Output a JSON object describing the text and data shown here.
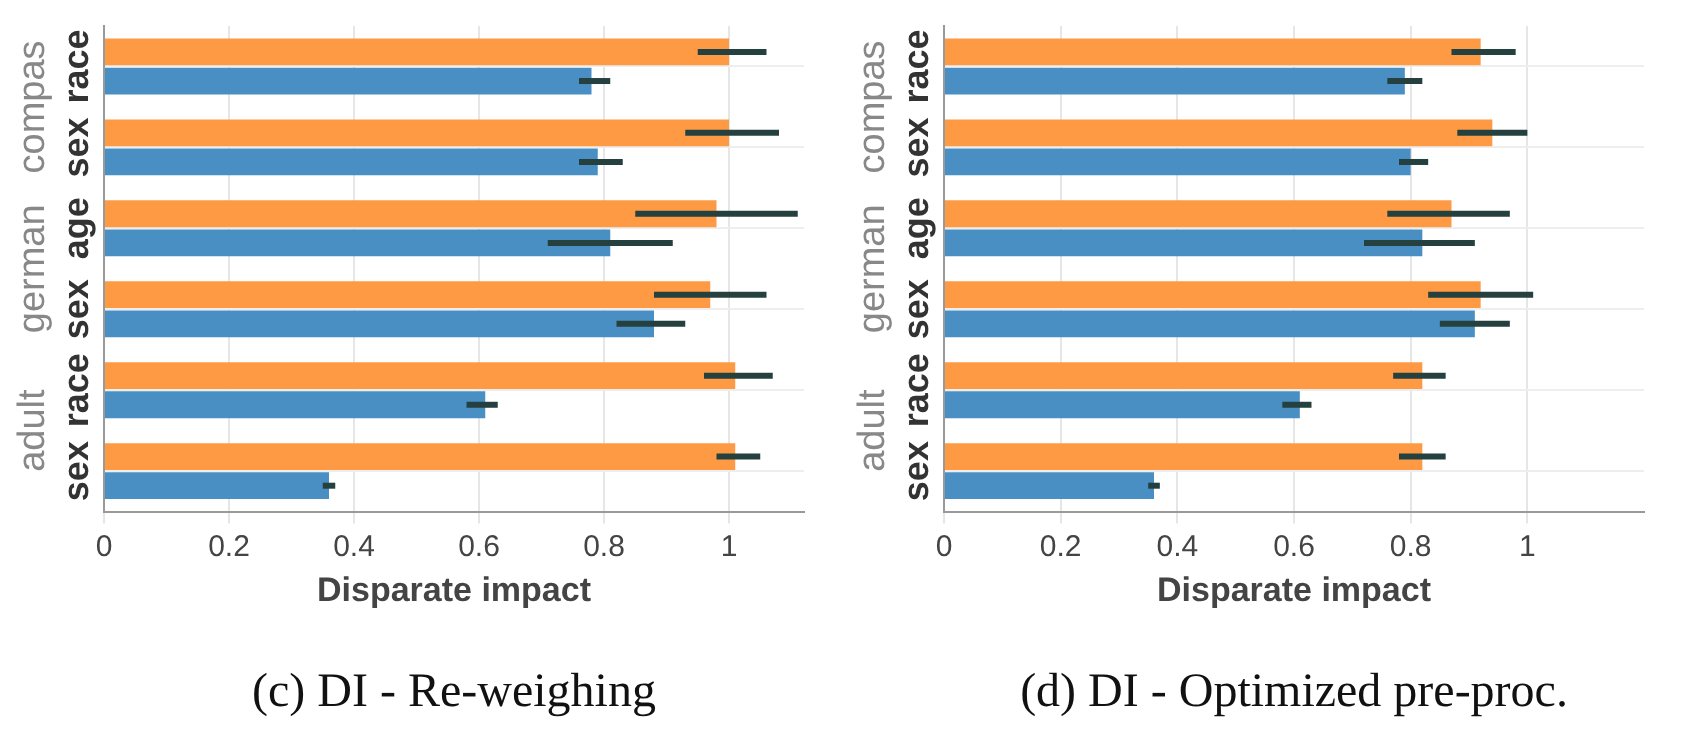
{
  "chart_data": [
    {
      "type": "bar",
      "orientation": "horizontal",
      "title": "(c) DI - Re-weighing",
      "xlabel": "Disparate impact",
      "categories": [
        "race",
        "sex",
        "age",
        "sex",
        "race",
        "sex"
      ],
      "annotations": [
        "compas",
        "german",
        "adult"
      ],
      "series": [
        {
          "color": "#fd9a43",
          "values": [
            1.0,
            1.0,
            0.98,
            0.97,
            1.01,
            1.01
          ],
          "errors": [
            [
              0.95,
              1.06
            ],
            [
              0.93,
              1.08
            ],
            [
              0.85,
              1.11
            ],
            [
              0.88,
              1.06
            ],
            [
              0.96,
              1.07
            ],
            [
              0.98,
              1.05
            ]
          ]
        },
        {
          "color": "#4a8fc4",
          "values": [
            0.78,
            0.79,
            0.81,
            0.88,
            0.61,
            0.36
          ],
          "errors": [
            [
              0.76,
              0.81
            ],
            [
              0.76,
              0.83
            ],
            [
              0.71,
              0.91
            ],
            [
              0.82,
              0.93
            ],
            [
              0.58,
              0.63
            ],
            [
              0.35,
              0.37
            ]
          ]
        }
      ],
      "xlim": [
        0,
        1.12
      ],
      "xticks": [
        0,
        0.2,
        0.4,
        0.6,
        0.8,
        1
      ],
      "grid": true
    },
    {
      "type": "bar",
      "orientation": "horizontal",
      "title": "(d) DI - Optimized pre-proc.",
      "xlabel": "Disparate impact",
      "categories": [
        "race",
        "sex",
        "age",
        "sex",
        "race",
        "sex"
      ],
      "annotations": [
        "compas",
        "german",
        "adult"
      ],
      "series": [
        {
          "color": "#fd9a43",
          "values": [
            0.92,
            0.94,
            0.87,
            0.92,
            0.82,
            0.82
          ],
          "errors": [
            [
              0.87,
              0.98
            ],
            [
              0.88,
              1.0
            ],
            [
              0.76,
              0.97
            ],
            [
              0.83,
              1.01
            ],
            [
              0.77,
              0.86
            ],
            [
              0.78,
              0.86
            ]
          ]
        },
        {
          "color": "#4a8fc4",
          "values": [
            0.79,
            0.8,
            0.82,
            0.91,
            0.61,
            0.36
          ],
          "errors": [
            [
              0.76,
              0.82
            ],
            [
              0.78,
              0.83
            ],
            [
              0.72,
              0.91
            ],
            [
              0.85,
              0.97
            ],
            [
              0.58,
              0.63
            ],
            [
              0.35,
              0.37
            ]
          ]
        }
      ],
      "xlim": [
        0,
        1.2
      ],
      "xticks": [
        0,
        0.2,
        0.4,
        0.6,
        0.8,
        1
      ],
      "grid": true
    }
  ]
}
